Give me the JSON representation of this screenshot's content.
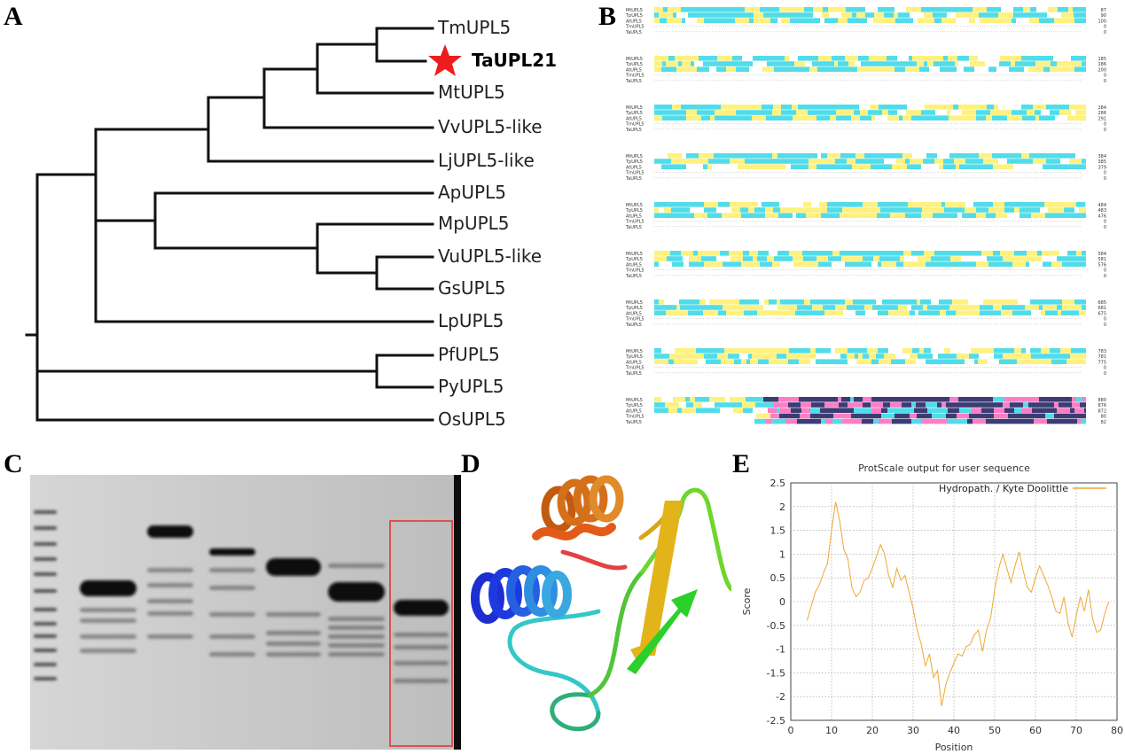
{
  "panels": {
    "a": "A",
    "b": "B",
    "c": "C",
    "d": "D",
    "e": "E"
  },
  "tree": {
    "leaves": [
      {
        "label": "TmUPL5",
        "bold": false
      },
      {
        "label": "TaUPL21",
        "bold": true,
        "marker": "star-icon",
        "marker_color": "#ee1c1c"
      },
      {
        "label": "MtUPL5",
        "bold": false
      },
      {
        "label": "VvUPL5-like",
        "bold": false
      },
      {
        "label": "LjUPL5-like",
        "bold": false
      },
      {
        "label": "ApUPL5",
        "bold": false
      },
      {
        "label": "MpUPL5",
        "bold": false
      },
      {
        "label": "VuUPL5-like",
        "bold": false
      },
      {
        "label": "GsUPL5",
        "bold": false
      },
      {
        "label": "LpUPL5",
        "bold": false
      },
      {
        "label": "PfUPL5",
        "bold": false
      },
      {
        "label": "PyUPL5",
        "bold": false
      },
      {
        "label": "OsUPL5",
        "bold": false
      }
    ]
  },
  "alignment": {
    "sequence_names": [
      "MtUPL5",
      "TpUPL5",
      "AtUPL5",
      "TmUPL5",
      "TaUPL5"
    ],
    "block_end_positions": [
      [
        "87",
        "90",
        "100",
        "0",
        "0"
      ],
      [
        "185",
        "186",
        "200",
        "0",
        "0"
      ],
      [
        "284",
        "286",
        "291",
        "0",
        "0"
      ],
      [
        "384",
        "385",
        "379",
        "0",
        "0"
      ],
      [
        "484",
        "483",
        "476",
        "0",
        "0"
      ],
      [
        "584",
        "581",
        "576",
        "0",
        "0"
      ],
      [
        "685",
        "681",
        "675",
        "0",
        "0"
      ],
      [
        "783",
        "781",
        "775",
        "0",
        "0"
      ],
      [
        "880",
        "876",
        "872",
        "80",
        "82"
      ]
    ],
    "colors": {
      "identical": "#1a1a5c",
      "high": "#ff66bb",
      "medium": "#33d6e6",
      "low": "#ffee66"
    }
  },
  "gel": {
    "highlight_color": "#e05050"
  },
  "protein": {
    "helix_colors": [
      "#e35b1b",
      "#d4701a",
      "#1d3ae0",
      "#2f8ee0"
    ],
    "sheet_colors": [
      "#e3b41a",
      "#2bd02b"
    ],
    "loop_colors": [
      "#35c7c7",
      "#2fae7a",
      "#6fd62e"
    ]
  },
  "chart_data": {
    "type": "line",
    "title": "ProtScale output for user sequence",
    "xlabel": "Position",
    "ylabel": "Score",
    "xlim": [
      0,
      80
    ],
    "ylim": [
      -2.5,
      2.5
    ],
    "xticks": [
      "0",
      "10",
      "20",
      "30",
      "40",
      "50",
      "60",
      "70",
      "80"
    ],
    "yticks": [
      "2.5",
      "2",
      "1.5",
      "1",
      "0.5",
      "0",
      "-0.5",
      "-1",
      "-1.5",
      "-2",
      "-2.5"
    ],
    "grid": true,
    "legend_position": "top-right",
    "series": [
      {
        "name": "Hydropath. / Kyte Doolittle",
        "color": "#f0a830",
        "x": [
          4,
          5,
          6,
          7,
          8,
          9,
          10,
          11,
          12,
          13,
          14,
          15,
          16,
          17,
          18,
          19,
          20,
          21,
          22,
          23,
          24,
          25,
          26,
          27,
          28,
          29,
          30,
          31,
          32,
          33,
          34,
          35,
          36,
          37,
          38,
          39,
          40,
          41,
          42,
          43,
          44,
          45,
          46,
          47,
          48,
          49,
          50,
          51,
          52,
          53,
          54,
          55,
          56,
          57,
          58,
          59,
          60,
          61,
          62,
          63,
          64,
          65,
          66,
          67,
          68,
          69,
          70,
          71,
          72,
          73,
          74,
          75,
          76,
          77,
          78
        ],
        "y": [
          -0.4,
          -0.1,
          0.2,
          0.35,
          0.6,
          0.8,
          1.5,
          2.1,
          1.7,
          1.1,
          0.9,
          0.3,
          0.1,
          0.2,
          0.45,
          0.5,
          0.7,
          0.95,
          1.2,
          1.0,
          0.55,
          0.3,
          0.7,
          0.45,
          0.55,
          0.2,
          -0.15,
          -0.6,
          -0.9,
          -1.35,
          -1.1,
          -1.6,
          -1.45,
          -2.2,
          -1.75,
          -1.5,
          -1.3,
          -1.1,
          -1.15,
          -0.95,
          -0.9,
          -0.7,
          -0.6,
          -1.05,
          -0.6,
          -0.35,
          0.25,
          0.7,
          1.0,
          0.7,
          0.4,
          0.75,
          1.05,
          0.65,
          0.3,
          0.2,
          0.5,
          0.75,
          0.55,
          0.35,
          0.1,
          -0.2,
          -0.25,
          0.1,
          -0.45,
          -0.75,
          -0.3,
          0.1,
          -0.2,
          0.25,
          -0.35,
          -0.65,
          -0.6,
          -0.25,
          0.0
        ]
      }
    ]
  }
}
